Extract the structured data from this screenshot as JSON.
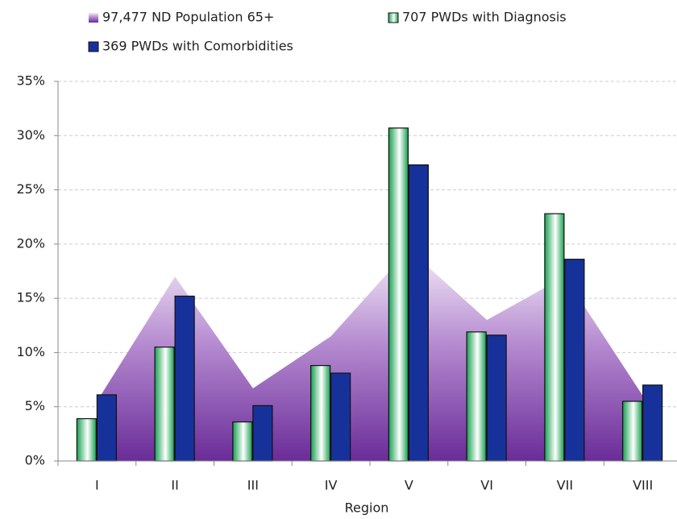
{
  "chart_data": {
    "type": "bar",
    "x_label": "Region",
    "categories": [
      "I",
      "II",
      "III",
      "IV",
      "V",
      "VI",
      "VII",
      "VIII"
    ],
    "series": [
      {
        "name": "97,477 ND Population 65+",
        "type": "area",
        "color": "#7a3fa8",
        "values": [
          5.5,
          17,
          6.7,
          11.5,
          19.5,
          13,
          17,
          6
        ]
      },
      {
        "name": "707 PWDs with Diagnosis",
        "type": "bar",
        "color": "#1faa55",
        "values": [
          3.9,
          10.5,
          3.6,
          8.8,
          30.7,
          11.9,
          22.8,
          5.5
        ]
      },
      {
        "name": "369 PWDs with Comorbidities",
        "type": "bar",
        "color": "#16329a",
        "values": [
          6.1,
          15.2,
          5.1,
          8.1,
          27.3,
          11.6,
          18.6,
          7.0
        ]
      }
    ],
    "ylim": [
      0,
      35
    ],
    "yticks": [
      {
        "value": 0,
        "label": "0%"
      },
      {
        "value": 5,
        "label": "5%"
      },
      {
        "value": 10,
        "label": "10%"
      },
      {
        "value": 15,
        "label": "15%"
      },
      {
        "value": 20,
        "label": "20%"
      },
      {
        "value": 25,
        "label": "25%"
      },
      {
        "value": 30,
        "label": "30%"
      },
      {
        "value": 35,
        "label": "35%"
      }
    ],
    "grid": true
  }
}
